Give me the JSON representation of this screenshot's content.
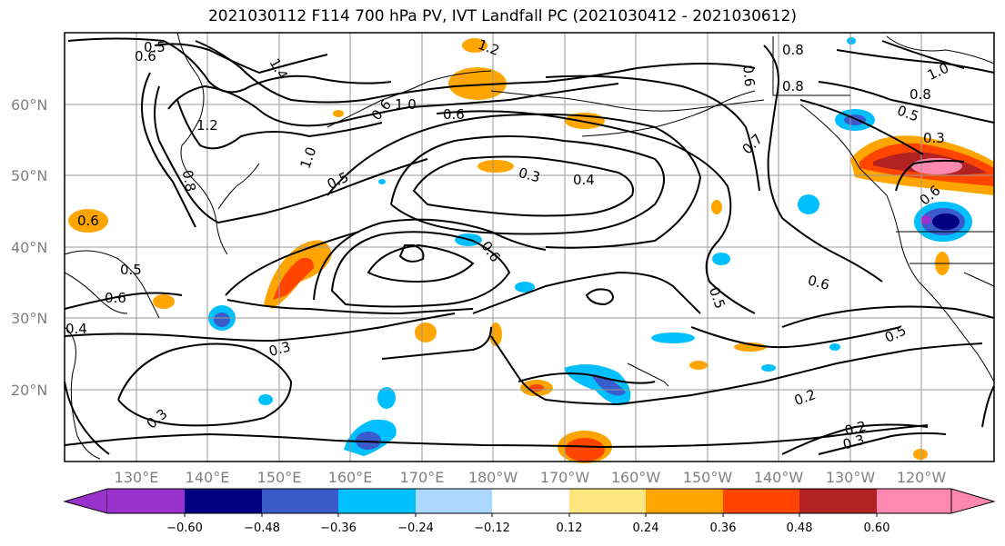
{
  "title": "2021030112 F114 700 hPa PV, IVT Landfall PC (2021030412 - 2021030612)",
  "lat_labels": [
    "60°N",
    "50°N",
    "40°N",
    "30°N",
    "20°N"
  ],
  "lon_labels": [
    "130°E",
    "140°E",
    "150°E",
    "160°E",
    "170°E",
    "180°W",
    "170°W",
    "160°W",
    "150°W",
    "140°W",
    "130°W",
    "120°W"
  ],
  "contour_labels": [
    "0.5",
    "0.6",
    "1.4",
    "1.2",
    "1.2",
    "1.0",
    "0.6",
    "0.8",
    "0.6",
    "0.3",
    "0.4",
    "0.5",
    "1.0",
    "0.6",
    "0.5",
    "0.6",
    "0.4",
    "0.3",
    "0.6",
    "0.5",
    "0.6",
    "0.7",
    "0.6",
    "0.8",
    "0.8",
    "0.5",
    "0.3",
    "1.0",
    "0.8",
    "0.6",
    "0.5",
    "0.2",
    "0.2",
    "0.3",
    "0.3"
  ],
  "colorbar": {
    "ticks": [
      "−0.60",
      "−0.48",
      "−0.36",
      "−0.24",
      "−0.12",
      "0.12",
      "0.24",
      "0.36",
      "0.48",
      "0.60"
    ],
    "colors": [
      "#9932CC",
      "#000080",
      "#3A5BCC",
      "#00BFFF",
      "#ADD8FF",
      "#FFFFFF",
      "#FFE680",
      "#FFA500",
      "#FF4500",
      "#B22222",
      "#FF88B0",
      "#FF88B0"
    ]
  },
  "colors": {
    "orange": "#FFA500",
    "red_orange": "#FF4500",
    "dark_red": "#B22222",
    "pink": "#FF88B0",
    "yellow": "#FFE680",
    "light_blue": "#ADD8FF",
    "sky_blue": "#00BFFF",
    "royal_blue": "#3A5BCC",
    "navy": "#000080",
    "purple": "#9932CC"
  }
}
